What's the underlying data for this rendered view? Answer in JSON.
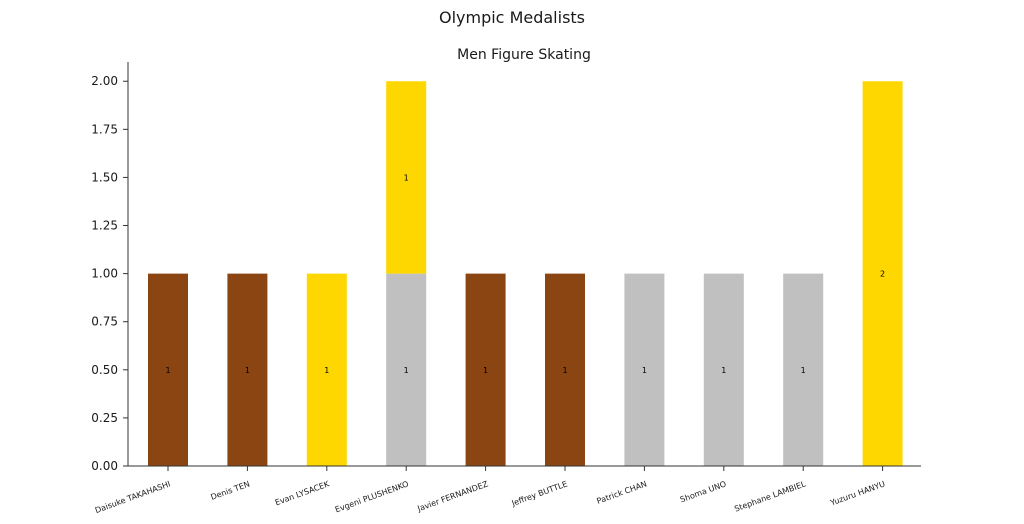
{
  "chart_data": {
    "type": "bar",
    "stacked": true,
    "suptitle": "Olympic Medalists",
    "title": "Men Figure Skating",
    "xlabel": "",
    "ylabel": "",
    "ylim": [
      0,
      2.1
    ],
    "yticks": [
      "0.00",
      "0.25",
      "0.50",
      "0.75",
      "1.00",
      "1.25",
      "1.50",
      "1.75",
      "2.00"
    ],
    "ytick_values": [
      0,
      0.25,
      0.5,
      0.75,
      1.0,
      1.25,
      1.5,
      1.75,
      2.0
    ],
    "grid": false,
    "categories": [
      "Daisuke TAKAHASHI",
      "Denis TEN",
      "Evan LYSACEK",
      "Evgeni PLUSHENKO",
      "Javier FERNANDEZ",
      "Jeffrey BUTTLE",
      "Patrick CHAN",
      "Shoma UNO",
      "Stephane LAMBIEL",
      "Yuzuru HANYU"
    ],
    "series": [
      {
        "key": "bronze",
        "color": "#8B4513",
        "values": [
          1,
          1,
          0,
          0,
          1,
          1,
          0,
          0,
          0,
          0
        ]
      },
      {
        "key": "silver",
        "color": "#C0C0C0",
        "values": [
          0,
          0,
          0,
          1,
          0,
          0,
          1,
          1,
          1,
          0
        ]
      },
      {
        "key": "gold",
        "color": "#FFD700",
        "values": [
          0,
          0,
          1,
          1,
          0,
          0,
          0,
          0,
          0,
          2
        ]
      }
    ]
  }
}
